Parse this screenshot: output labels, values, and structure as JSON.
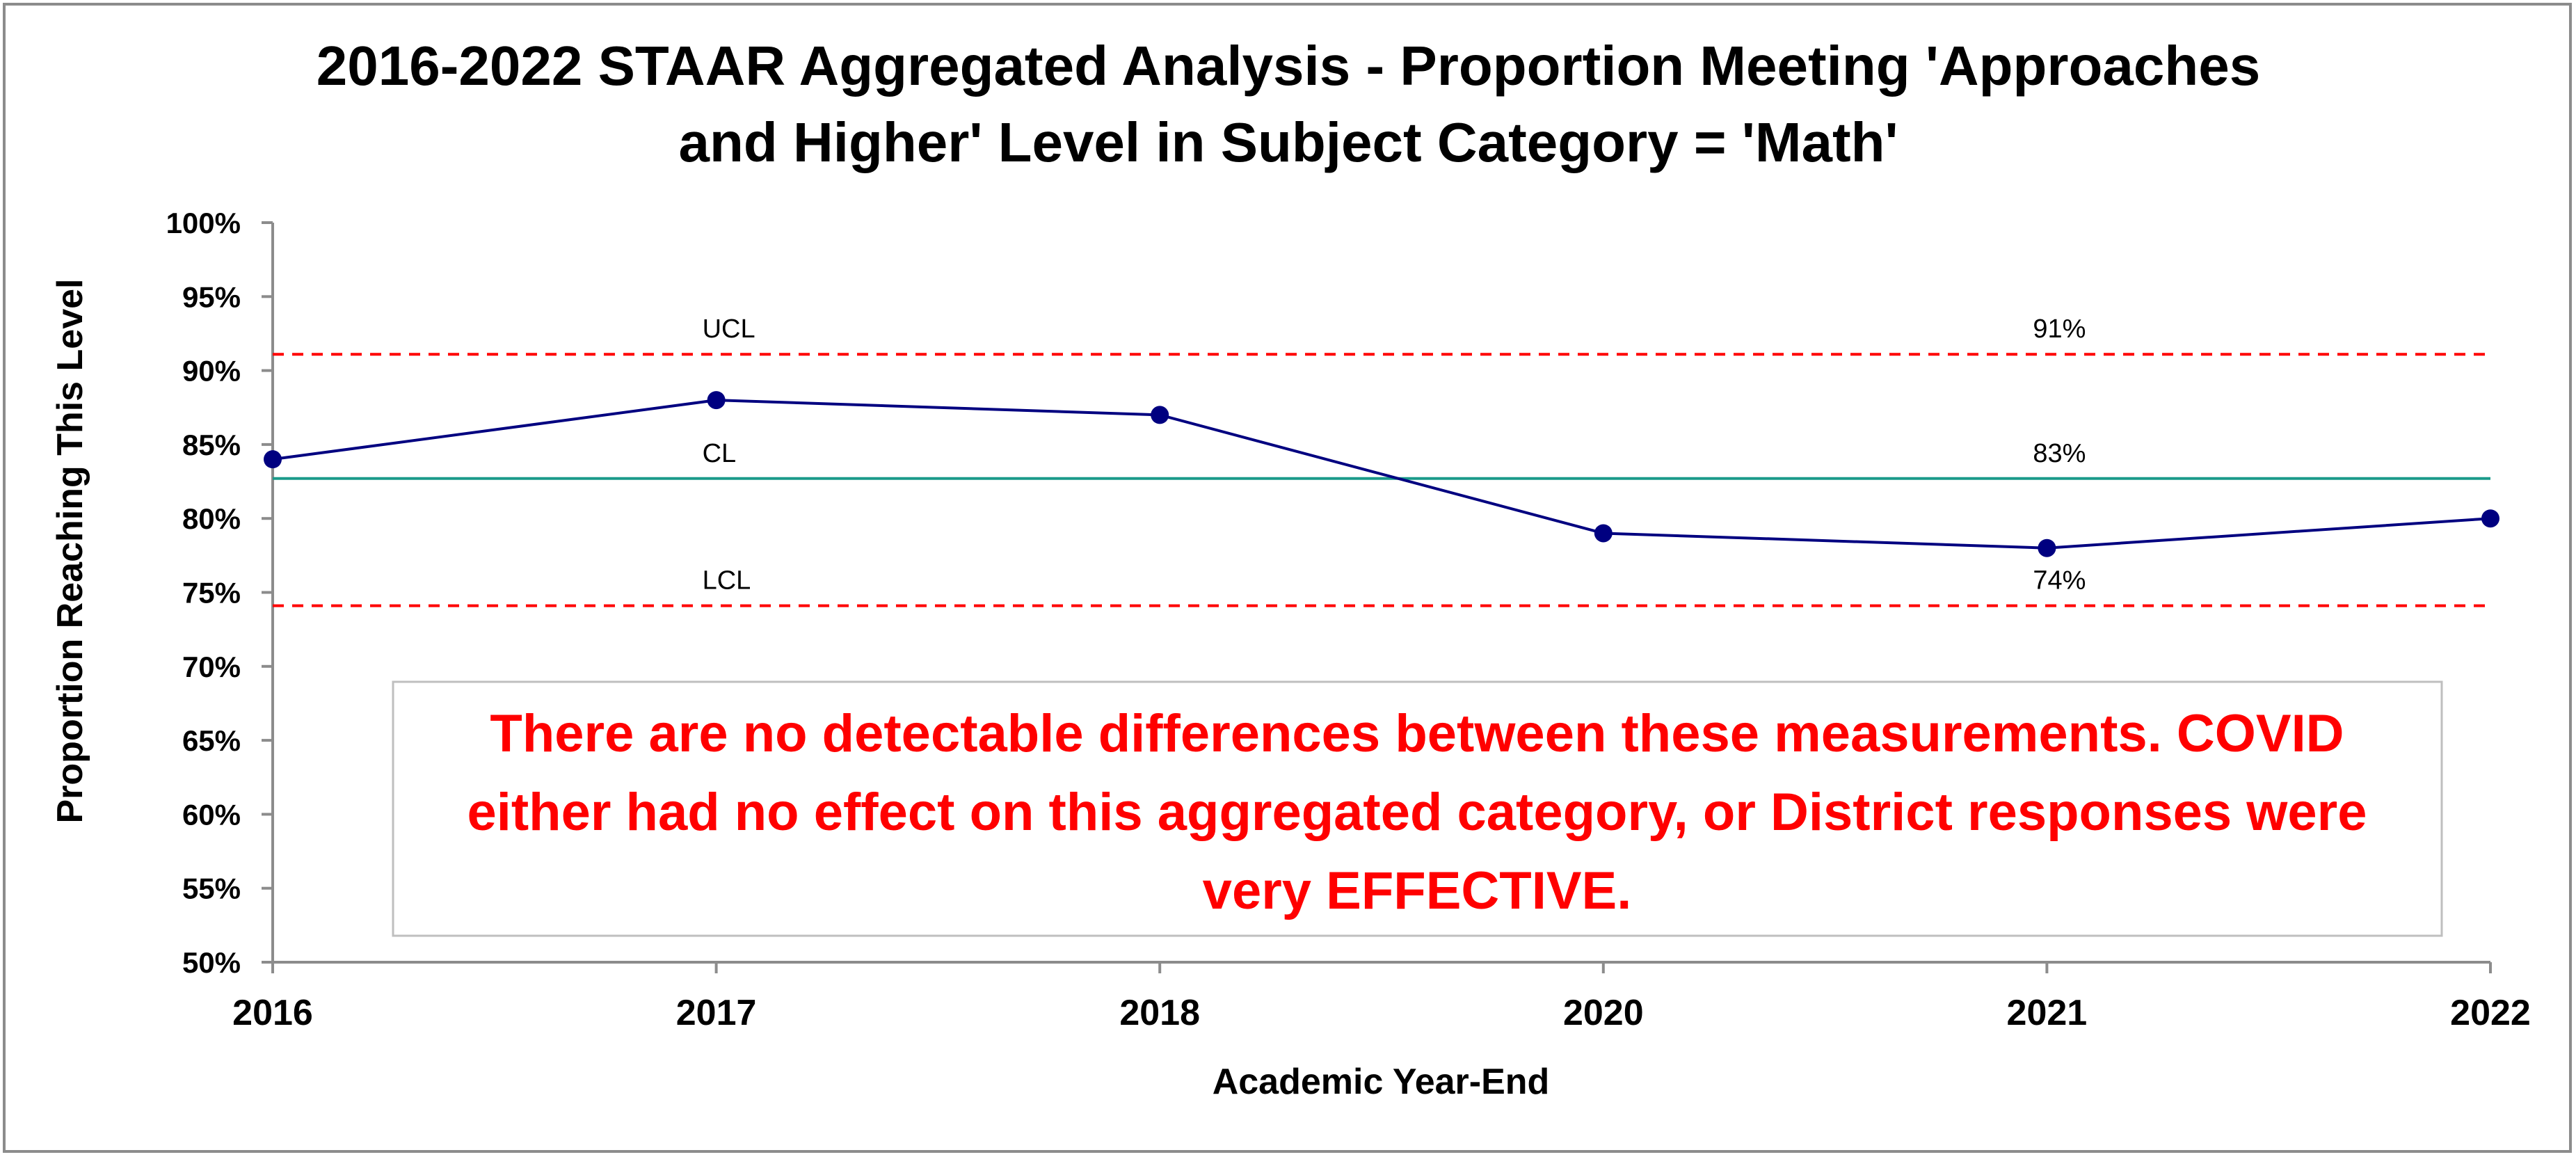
{
  "chart_data": {
    "type": "line",
    "title": [
      "2016-2022 STAAR Aggregated Analysis - Proportion Meeting 'Approaches",
      "and Higher' Level in Subject Category = 'Math'"
    ],
    "xlabel": "Academic Year-End",
    "ylabel": "Proportion Reaching This Level",
    "categories": [
      "2016",
      "2017",
      "2018",
      "2020",
      "2021",
      "2022"
    ],
    "values": [
      84,
      88,
      87,
      79,
      78,
      80
    ],
    "ylim": [
      50,
      100
    ],
    "yticks": [
      50,
      55,
      60,
      65,
      70,
      75,
      80,
      85,
      90,
      95,
      100
    ],
    "ytick_suffix": "%",
    "series_color": "#000080",
    "control_lines": [
      {
        "label": "UCL",
        "value": 91.1,
        "value_label": "91%",
        "color": "#ff0000",
        "style": "dashed"
      },
      {
        "label": "CL",
        "value": 82.7,
        "value_label": "83%",
        "color": "#1a9a8a",
        "style": "solid"
      },
      {
        "label": "LCL",
        "value": 74.1,
        "value_label": "74%",
        "color": "#ff0000",
        "style": "dashed"
      }
    ],
    "annotation": {
      "lines": [
        "There are no detectable differences between these measurements.  COVID",
        "either had no effect on this aggregated category, or District responses were",
        "very EFFECTIVE."
      ],
      "color": "#ff0000"
    },
    "grid": false,
    "legend": "none"
  }
}
